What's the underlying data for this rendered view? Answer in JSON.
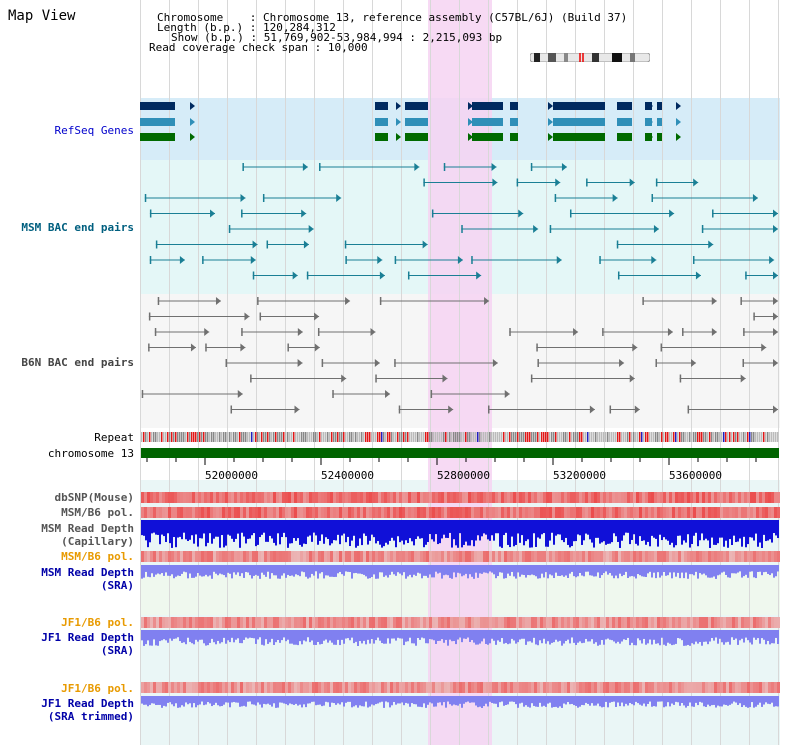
{
  "window": {
    "title": "Map View"
  },
  "header": {
    "chromosome_label": "Chromosome",
    "chromosome_value": "Chromosome 13, reference assembly (C57BL/6J) (Build 37)",
    "length_label": "Length (b.p.)",
    "length_value": "120,284,312",
    "show_label": "Show (b.p.)",
    "show_value": "51,769,902-53,984,994 : 2,215,093 bp",
    "read_coverage_label": "Read coverage check span",
    "read_coverage_value": "10,000"
  },
  "tracks": {
    "refseq": "RefSeq Genes",
    "msm_bac": "MSM BAC end pairs",
    "b6n_bac": "B6N BAC end pairs",
    "repeat": "Repeat",
    "chromosome": "chromosome 13",
    "dbsnp": "dbSNP(Mouse)",
    "msm_b6_pol_1": "MSM/B6 pol.",
    "msm_read_depth_cap_1": "MSM Read Depth",
    "msm_read_depth_cap_2": "(Capillary)",
    "msm_b6_pol_2": "MSM/B6 pol.",
    "msm_read_depth_sra_1": "MSM Read Depth",
    "msm_read_depth_sra_2": "(SRA)",
    "jf1_b6_pol_1": "JF1/B6 pol.",
    "jf1_read_depth_1": "JF1 Read Depth",
    "jf1_read_depth_2": "(SRA)",
    "jf1_b6_pol_2": "JF1/B6 pol.",
    "jf1_read_depth_trim_1": "JF1 Read Depth",
    "jf1_read_depth_trim_2": "(SRA trimmed)"
  },
  "axis": {
    "ticks": [
      "52000000",
      "52400000",
      "52800000",
      "53200000",
      "53600000"
    ]
  },
  "colors": {
    "refseq_bg": "#d6ecf8",
    "msm_bg": "#e4f7f7",
    "b6n_bg": "#f6f6f6",
    "highlight": "#f8d8f4",
    "chromosome_bar": "#006400",
    "msm_pol": "#e83030",
    "msm_depth": "#1010d8",
    "sra_depth": "#8080f0"
  },
  "icons": {
    "ideogram": "chromosome-ideogram"
  }
}
